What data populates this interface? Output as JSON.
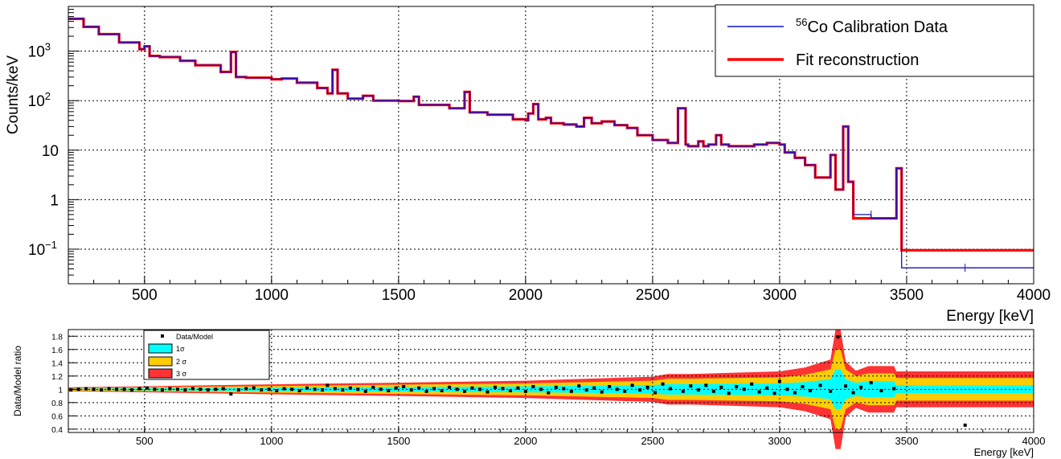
{
  "chart_data": [
    {
      "type": "line",
      "ylabel": "Counts/keV",
      "xlabel": "",
      "xlim": [
        200,
        4000
      ],
      "ylim": [
        0.02,
        8000
      ],
      "yscale": "log",
      "grid": true,
      "legend_position": "top-right",
      "x_ticks": [
        "500",
        "1000",
        "1500",
        "2000",
        "2500",
        "3000",
        "3500",
        "4000"
      ],
      "y_ticks": [
        {
          "value": 0.1,
          "base": "10",
          "exp": "−1"
        },
        {
          "value": 1,
          "base": "1",
          "exp": ""
        },
        {
          "value": 10,
          "base": "10",
          "exp": ""
        },
        {
          "value": 100,
          "base": "10",
          "exp": "2"
        },
        {
          "value": 1000,
          "base": "10",
          "exp": "3"
        }
      ],
      "series": [
        {
          "name_sup": "56",
          "name": "Co Calibration Data",
          "color": "#1010c8"
        },
        {
          "name": "Fit reconstruction",
          "color": "#ff0000"
        }
      ],
      "x": [
        200,
        260,
        320,
        400,
        480,
        500,
        520,
        560,
        640,
        700,
        800,
        840,
        860,
        900,
        1000,
        1040,
        1100,
        1180,
        1220,
        1240,
        1260,
        1300,
        1360,
        1400,
        1500,
        1560,
        1580,
        1700,
        1760,
        1780,
        1850,
        1950,
        2000,
        2010,
        2030,
        2050,
        2080,
        2100,
        2150,
        2200,
        2230,
        2260,
        2300,
        2350,
        2400,
        2440,
        2500,
        2560,
        2600,
        2630,
        2640,
        2680,
        2700,
        2720,
        2750,
        2770,
        2800,
        2850,
        2900,
        2950,
        3000,
        3020,
        3060,
        3100,
        3140,
        3200,
        3220,
        3250,
        3270,
        3290,
        3360,
        3440,
        3460,
        3480,
        3730,
        4000
      ],
      "fit_values": [
        4500,
        3100,
        2200,
        1500,
        1100,
        1250,
        800,
        760,
        640,
        520,
        380,
        960,
        300,
        290,
        270,
        280,
        230,
        180,
        140,
        420,
        140,
        110,
        125,
        100,
        98,
        120,
        82,
        70,
        150,
        58,
        52,
        42,
        40,
        55,
        85,
        42,
        45,
        35,
        33,
        30,
        45,
        35,
        38,
        32,
        28,
        20,
        16,
        14,
        70,
        13,
        12,
        15,
        12,
        13,
        20,
        13,
        12,
        12,
        13,
        14,
        13,
        9,
        7,
        5,
        2.8,
        8,
        1.6,
        30,
        2.3,
        0.42,
        0.42,
        0.42,
        4.3,
        0.095,
        0.095,
        0.095
      ],
      "data_points": [
        {
          "x": 3360,
          "y": 0.5
        },
        {
          "x": 3730,
          "y": 0.042
        }
      ]
    },
    {
      "type": "line",
      "ylabel": "Data/Model ratio",
      "xlabel": "Energy [keV]",
      "xlim": [
        200,
        4000
      ],
      "ylim": [
        0.35,
        1.9
      ],
      "grid": true,
      "legend_position": "top-left",
      "x_ticks": [
        "500",
        "1000",
        "1500",
        "2000",
        "2500",
        "3000",
        "3500",
        "4000"
      ],
      "y_ticks": [
        "0.4",
        "0.6",
        "0.8",
        "1",
        "1.2",
        "1.4",
        "1.6",
        "1.8"
      ],
      "legend": [
        {
          "label": "Data/Model",
          "kind": "marker",
          "color": "#000000"
        },
        {
          "label": "1σ",
          "kind": "box",
          "color": "#00ffff"
        },
        {
          "label": "2 σ",
          "kind": "box",
          "color": "#ffcc00"
        },
        {
          "label": "3 σ",
          "kind": "box",
          "color": "#ff3333"
        }
      ],
      "band_x": [
        200,
        500,
        1000,
        1500,
        2000,
        2500,
        2560,
        2600,
        2650,
        3000,
        3100,
        3200,
        3220,
        3240,
        3260,
        3300,
        3350,
        3450,
        3460,
        4000
      ],
      "band_1sigma": [
        0.01,
        0.015,
        0.025,
        0.035,
        0.045,
        0.065,
        0.08,
        0.08,
        0.08,
        0.09,
        0.11,
        0.15,
        0.3,
        0.3,
        0.15,
        0.1,
        0.12,
        0.12,
        0.06,
        0.06
      ],
      "band_2sigma": [
        0.02,
        0.03,
        0.05,
        0.07,
        0.09,
        0.13,
        0.16,
        0.16,
        0.16,
        0.18,
        0.22,
        0.3,
        0.6,
        0.6,
        0.3,
        0.2,
        0.24,
        0.24,
        0.17,
        0.17
      ],
      "band_3sigma": [
        0.03,
        0.045,
        0.075,
        0.1,
        0.13,
        0.19,
        0.23,
        0.23,
        0.23,
        0.27,
        0.33,
        0.45,
        0.9,
        0.9,
        0.42,
        0.28,
        0.35,
        0.35,
        0.27,
        0.27
      ],
      "ratio_points": [
        {
          "x": 210,
          "y": 0.99
        },
        {
          "x": 240,
          "y": 1.0
        },
        {
          "x": 270,
          "y": 1.01
        },
        {
          "x": 300,
          "y": 1.0
        },
        {
          "x": 330,
          "y": 0.99
        },
        {
          "x": 360,
          "y": 1.01
        },
        {
          "x": 390,
          "y": 1.0
        },
        {
          "x": 420,
          "y": 1.0
        },
        {
          "x": 450,
          "y": 0.99
        },
        {
          "x": 480,
          "y": 1.01
        },
        {
          "x": 510,
          "y": 1.02
        },
        {
          "x": 540,
          "y": 1.0
        },
        {
          "x": 570,
          "y": 0.99
        },
        {
          "x": 600,
          "y": 1.01
        },
        {
          "x": 630,
          "y": 1.0
        },
        {
          "x": 660,
          "y": 0.99
        },
        {
          "x": 690,
          "y": 1.01
        },
        {
          "x": 720,
          "y": 1.0
        },
        {
          "x": 750,
          "y": 0.99
        },
        {
          "x": 780,
          "y": 1.0
        },
        {
          "x": 810,
          "y": 1.01
        },
        {
          "x": 840,
          "y": 0.93
        },
        {
          "x": 870,
          "y": 0.99
        },
        {
          "x": 900,
          "y": 1.01
        },
        {
          "x": 930,
          "y": 1.02
        },
        {
          "x": 960,
          "y": 0.99
        },
        {
          "x": 990,
          "y": 1.0
        },
        {
          "x": 1020,
          "y": 0.98
        },
        {
          "x": 1050,
          "y": 1.01
        },
        {
          "x": 1080,
          "y": 1.0
        },
        {
          "x": 1110,
          "y": 0.98
        },
        {
          "x": 1140,
          "y": 1.02
        },
        {
          "x": 1170,
          "y": 1.0
        },
        {
          "x": 1200,
          "y": 0.99
        },
        {
          "x": 1220,
          "y": 1.06
        },
        {
          "x": 1250,
          "y": 1.01
        },
        {
          "x": 1280,
          "y": 0.99
        },
        {
          "x": 1310,
          "y": 1.02
        },
        {
          "x": 1340,
          "y": 1.0
        },
        {
          "x": 1370,
          "y": 0.97
        },
        {
          "x": 1400,
          "y": 1.03
        },
        {
          "x": 1430,
          "y": 1.0
        },
        {
          "x": 1460,
          "y": 0.98
        },
        {
          "x": 1490,
          "y": 1.02
        },
        {
          "x": 1520,
          "y": 1.04
        },
        {
          "x": 1550,
          "y": 0.99
        },
        {
          "x": 1580,
          "y": 1.02
        },
        {
          "x": 1610,
          "y": 0.97
        },
        {
          "x": 1640,
          "y": 1.01
        },
        {
          "x": 1670,
          "y": 0.98
        },
        {
          "x": 1700,
          "y": 1.03
        },
        {
          "x": 1730,
          "y": 1.0
        },
        {
          "x": 1760,
          "y": 0.97
        },
        {
          "x": 1790,
          "y": 1.02
        },
        {
          "x": 1820,
          "y": 1.0
        },
        {
          "x": 1850,
          "y": 0.96
        },
        {
          "x": 1880,
          "y": 1.03
        },
        {
          "x": 1910,
          "y": 1.01
        },
        {
          "x": 1940,
          "y": 0.98
        },
        {
          "x": 1970,
          "y": 1.02
        },
        {
          "x": 2000,
          "y": 0.97
        },
        {
          "x": 2030,
          "y": 1.04
        },
        {
          "x": 2060,
          "y": 1.0
        },
        {
          "x": 2090,
          "y": 0.95
        },
        {
          "x": 2120,
          "y": 1.03
        },
        {
          "x": 2150,
          "y": 1.01
        },
        {
          "x": 2180,
          "y": 0.97
        },
        {
          "x": 2210,
          "y": 1.05
        },
        {
          "x": 2240,
          "y": 0.99
        },
        {
          "x": 2270,
          "y": 1.02
        },
        {
          "x": 2300,
          "y": 0.96
        },
        {
          "x": 2330,
          "y": 1.04
        },
        {
          "x": 2360,
          "y": 1.0
        },
        {
          "x": 2390,
          "y": 0.97
        },
        {
          "x": 2420,
          "y": 1.06
        },
        {
          "x": 2450,
          "y": 0.99
        },
        {
          "x": 2480,
          "y": 1.03
        },
        {
          "x": 2510,
          "y": 0.95
        },
        {
          "x": 2540,
          "y": 1.08
        },
        {
          "x": 2570,
          "y": 1.01
        },
        {
          "x": 2620,
          "y": 0.97
        },
        {
          "x": 2650,
          "y": 1.05
        },
        {
          "x": 2680,
          "y": 0.99
        },
        {
          "x": 2710,
          "y": 1.06
        },
        {
          "x": 2740,
          "y": 0.97
        },
        {
          "x": 2770,
          "y": 1.03
        },
        {
          "x": 2800,
          "y": 0.94
        },
        {
          "x": 2830,
          "y": 1.04
        },
        {
          "x": 2860,
          "y": 1.0
        },
        {
          "x": 2890,
          "y": 1.08
        },
        {
          "x": 2920,
          "y": 0.96
        },
        {
          "x": 2950,
          "y": 1.02
        },
        {
          "x": 2980,
          "y": 0.94
        },
        {
          "x": 3000,
          "y": 1.12
        },
        {
          "x": 3030,
          "y": 1.0
        },
        {
          "x": 3060,
          "y": 0.95
        },
        {
          "x": 3090,
          "y": 1.04
        },
        {
          "x": 3120,
          "y": 0.98
        },
        {
          "x": 3160,
          "y": 1.06
        },
        {
          "x": 3200,
          "y": 0.97
        },
        {
          "x": 3230,
          "y": 1.79
        },
        {
          "x": 3260,
          "y": 1.05
        },
        {
          "x": 3290,
          "y": 0.95
        },
        {
          "x": 3320,
          "y": 1.03
        },
        {
          "x": 3360,
          "y": 1.1
        },
        {
          "x": 3400,
          "y": 0.98
        },
        {
          "x": 3450,
          "y": 1.01
        },
        {
          "x": 3730,
          "y": 0.46
        }
      ]
    }
  ]
}
